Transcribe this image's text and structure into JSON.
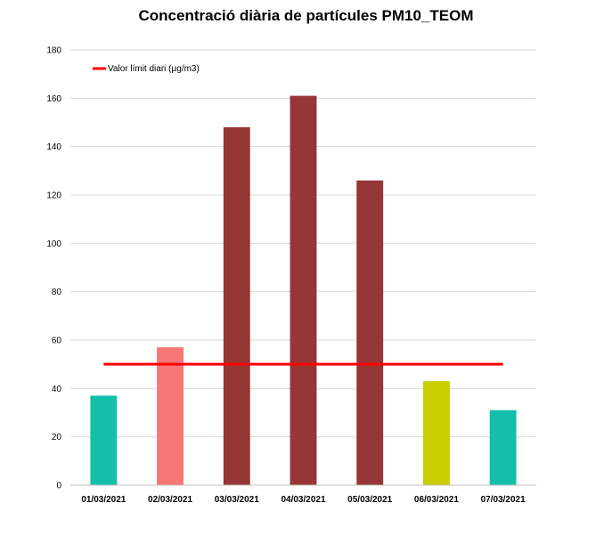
{
  "chart_data": {
    "type": "bar",
    "title": "Concentració diària de partícules PM10_TEOM",
    "xlabel": "",
    "ylabel": "",
    "categories": [
      "01/03/2021",
      "02/03/2021",
      "03/03/2021",
      "04/03/2021",
      "05/03/2021",
      "06/03/2021",
      "07/03/2021"
    ],
    "values": [
      37,
      57,
      148,
      161,
      126,
      43,
      31
    ],
    "bar_colors": [
      "#14bfaa",
      "#f87676",
      "#963636",
      "#963636",
      "#963636",
      "#c9cd00",
      "#14bfaa"
    ],
    "ylim": [
      0,
      180
    ],
    "yticks": [
      0,
      20,
      40,
      60,
      80,
      100,
      120,
      140,
      160,
      180
    ],
    "grid": true,
    "reference_line": {
      "name": "Valor límit diari (µg/m3)",
      "value": 50,
      "color": "#ff0000"
    },
    "legend": {
      "position": "top-left",
      "entries": [
        "Valor límit diari (µg/m3)"
      ]
    }
  }
}
